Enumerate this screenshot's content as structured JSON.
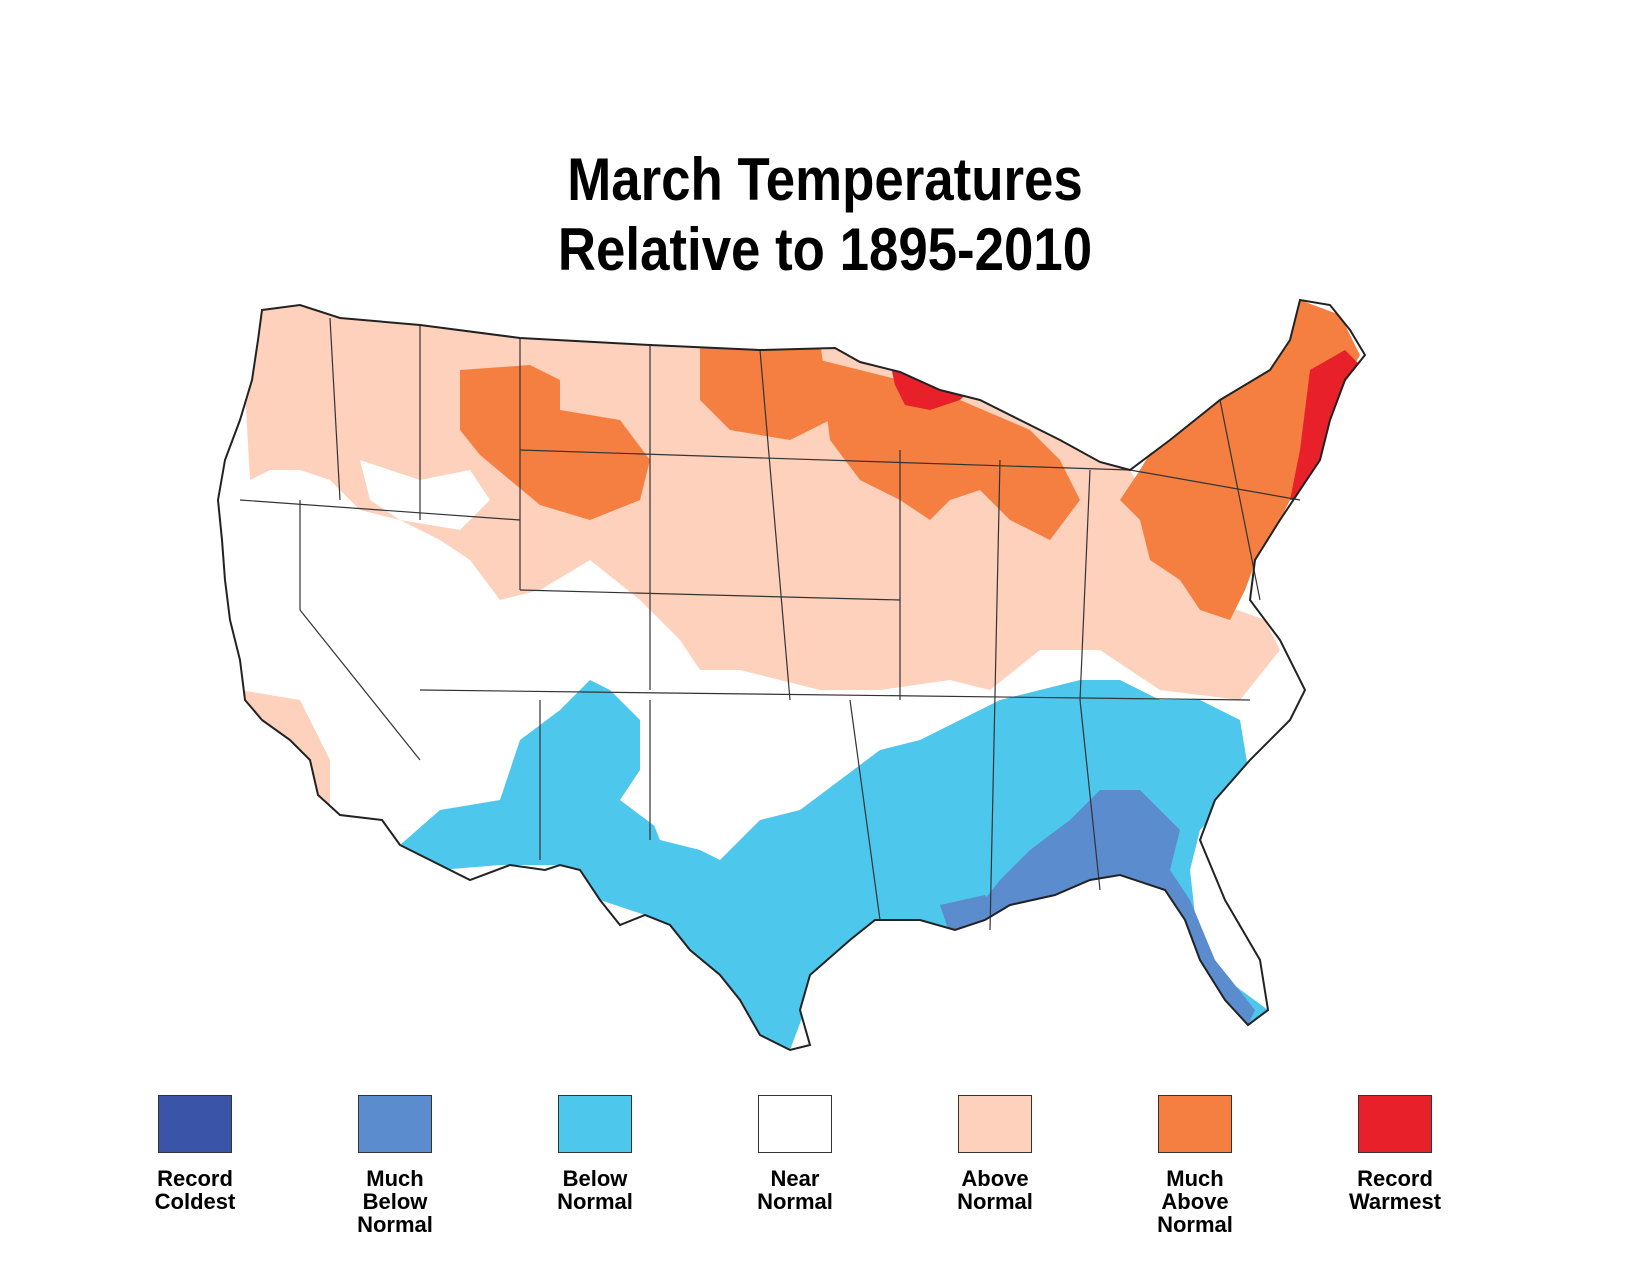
{
  "title": {
    "line1": "March Temperatures",
    "line2": "Relative to 1895-2010"
  },
  "colors": {
    "record_coldest": "#3a55a8",
    "much_below": "#5b8ccd",
    "below": "#4dc8ec",
    "near": "#ffffff",
    "above": "#fdd1bc",
    "much_above": "#f47f40",
    "record_warmest": "#e8202a"
  },
  "legend": [
    {
      "label": "Record\nColdest",
      "color": "#3a55a8"
    },
    {
      "label": "Much\nBelow\nNormal",
      "color": "#5b8ccd"
    },
    {
      "label": "Below\nNormal",
      "color": "#4dc8ec"
    },
    {
      "label": "Near\nNormal",
      "color": "#ffffff"
    },
    {
      "label": "Above\nNormal",
      "color": "#fdd1bc"
    },
    {
      "label": "Much\nAbove\nNormal",
      "color": "#f47f40"
    },
    {
      "label": "Record\nWarmest",
      "color": "#e8202a"
    }
  ]
}
